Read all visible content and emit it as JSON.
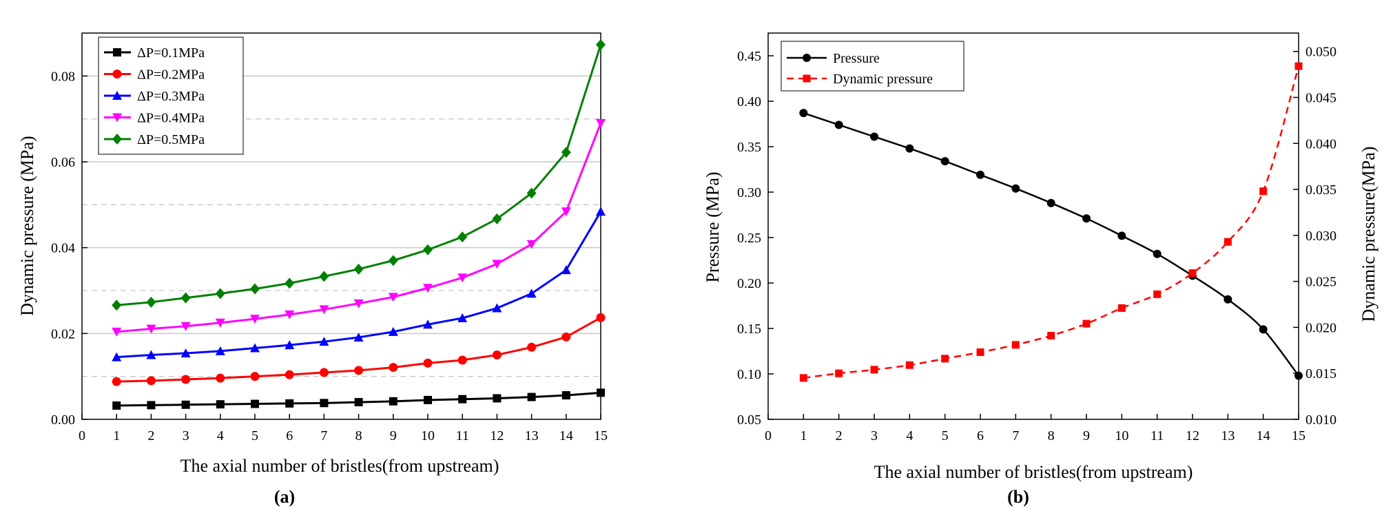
{
  "chart_data": [
    {
      "type": "line",
      "panel_label": "(a)",
      "xlabel": "The axial number of bristles(from upstream)",
      "ylabel": "Dynamic pressure (MPa)",
      "xlim": [
        0,
        15
      ],
      "ylim": [
        0,
        0.09
      ],
      "x_ticks": [
        "0",
        "1",
        "2",
        "3",
        "4",
        "5",
        "6",
        "7",
        "8",
        "9",
        "10",
        "11",
        "12",
        "13",
        "14",
        "15"
      ],
      "y_ticks": [
        "0.00",
        "0.02",
        "0.04",
        "0.06",
        "0.08"
      ],
      "legend_position": "top-left",
      "x": [
        1,
        2,
        3,
        4,
        5,
        6,
        7,
        8,
        9,
        10,
        11,
        12,
        13,
        14,
        15
      ],
      "series": [
        {
          "name": "ΔP=0.1MPa",
          "color": "#000000",
          "marker": "square",
          "values": [
            0.0032,
            0.0033,
            0.0034,
            0.0035,
            0.0036,
            0.0037,
            0.0038,
            0.004,
            0.0042,
            0.0045,
            0.0047,
            0.0049,
            0.0052,
            0.0056,
            0.0062
          ]
        },
        {
          "name": "ΔP=0.2MPa",
          "color": "#ff0000",
          "marker": "circle",
          "values": [
            0.0088,
            0.009,
            0.0093,
            0.0096,
            0.01,
            0.0104,
            0.0109,
            0.0114,
            0.0121,
            0.0131,
            0.0138,
            0.015,
            0.0168,
            0.0192,
            0.0237
          ]
        },
        {
          "name": "ΔP=0.3MPa",
          "color": "#0000ff",
          "marker": "triangle-up",
          "values": [
            0.0145,
            0.015,
            0.0154,
            0.0159,
            0.0166,
            0.0173,
            0.0181,
            0.0191,
            0.0204,
            0.0221,
            0.0236,
            0.0259,
            0.0293,
            0.0348,
            0.0484
          ]
        },
        {
          "name": "ΔP=0.4MPa",
          "color": "#ff00ff",
          "marker": "triangle-down",
          "values": [
            0.0204,
            0.0211,
            0.0217,
            0.0225,
            0.0234,
            0.0244,
            0.0256,
            0.027,
            0.0285,
            0.0306,
            0.033,
            0.0362,
            0.0408,
            0.0484,
            0.069
          ]
        },
        {
          "name": "ΔP=0.5MPa",
          "color": "#008000",
          "marker": "diamond",
          "values": [
            0.0266,
            0.0273,
            0.0283,
            0.0293,
            0.0304,
            0.0317,
            0.0333,
            0.035,
            0.037,
            0.0395,
            0.0425,
            0.0467,
            0.0527,
            0.0622,
            0.0873
          ]
        }
      ]
    },
    {
      "type": "line",
      "panel_label": "(b)",
      "xlabel": "The axial number of bristles(from upstream)",
      "ylabel_left": "Pressure (MPa)",
      "ylabel_right": "Dynamic pressure(MPa)",
      "xlim": [
        0,
        15
      ],
      "ylim_left": [
        0.05,
        0.475
      ],
      "ylim_right": [
        0.01,
        0.052
      ],
      "x_ticks": [
        "0",
        "1",
        "2",
        "3",
        "4",
        "5",
        "6",
        "7",
        "8",
        "9",
        "10",
        "11",
        "12",
        "13",
        "14",
        "15"
      ],
      "y_ticks_left": [
        "0.05",
        "0.10",
        "0.15",
        "0.20",
        "0.25",
        "0.30",
        "0.35",
        "0.40",
        "0.45"
      ],
      "y_ticks_right": [
        "0.010",
        "0.015",
        "0.020",
        "0.025",
        "0.030",
        "0.035",
        "0.040",
        "0.045",
        "0.050"
      ],
      "legend_position": "top-left",
      "x": [
        1,
        2,
        3,
        4,
        5,
        6,
        7,
        8,
        9,
        10,
        11,
        12,
        13,
        14,
        15
      ],
      "series": [
        {
          "name": "Pressure",
          "axis": "left",
          "color": "#000000",
          "marker": "circle",
          "line_style": "solid",
          "values": [
            0.387,
            0.374,
            0.361,
            0.348,
            0.334,
            0.319,
            0.304,
            0.288,
            0.271,
            0.252,
            0.232,
            0.208,
            0.182,
            0.149,
            0.098
          ]
        },
        {
          "name": "Dynamic pressure",
          "axis": "right",
          "color": "#ff0000",
          "marker": "square",
          "line_style": "dashed",
          "values": [
            0.0145,
            0.015,
            0.0154,
            0.0159,
            0.0166,
            0.0173,
            0.0181,
            0.0191,
            0.0204,
            0.0221,
            0.0236,
            0.0259,
            0.0293,
            0.0348,
            0.0484
          ]
        }
      ]
    }
  ]
}
